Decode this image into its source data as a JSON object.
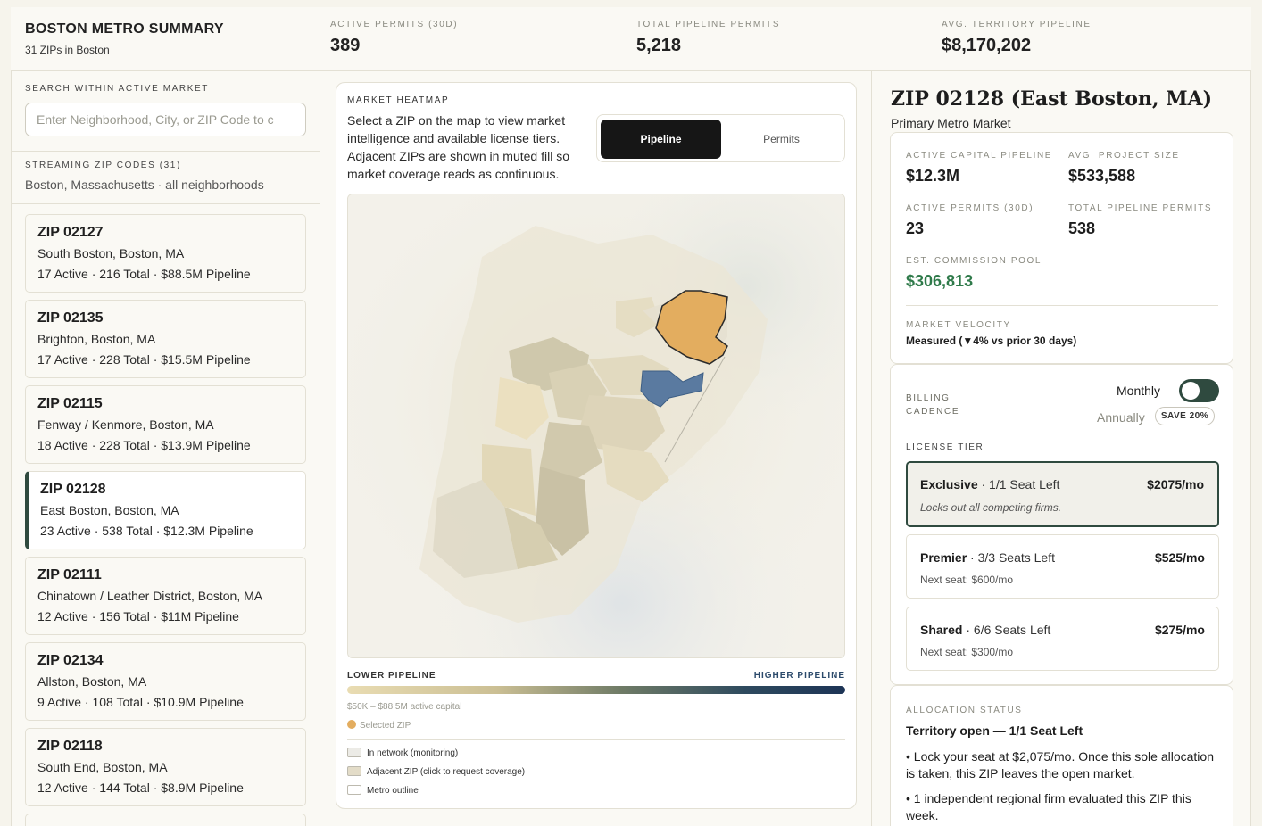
{
  "header": {
    "title": "BOSTON METRO SUMMARY",
    "subtitle": "31 ZIPs in Boston",
    "stats": [
      {
        "label": "ACTIVE PERMITS (30D)",
        "value": "389"
      },
      {
        "label": "TOTAL PIPELINE PERMITS",
        "value": "5,218"
      },
      {
        "label": "AVG. TERRITORY PIPELINE",
        "value": "$8,170,202"
      }
    ]
  },
  "sidebar": {
    "search_label": "SEARCH WITHIN ACTIVE MARKET",
    "search_placeholder": "Enter Neighborhood, City, or ZIP Code to c",
    "streaming_label": "STREAMING ZIP CODES (31)",
    "streaming_sub": "Boston, Massachusetts · all neighborhoods",
    "zips": [
      {
        "title": "ZIP 02127",
        "location": "South Boston, Boston, MA",
        "stats": "17 Active · 216 Total · $88.5M Pipeline"
      },
      {
        "title": "ZIP 02135",
        "location": "Brighton, Boston, MA",
        "stats": "17 Active · 228 Total · $15.5M Pipeline"
      },
      {
        "title": "ZIP 02115",
        "location": "Fenway / Kenmore, Boston, MA",
        "stats": "18 Active · 228 Total · $13.9M Pipeline"
      },
      {
        "title": "ZIP 02128",
        "location": "East Boston, Boston, MA",
        "stats": "23 Active · 538 Total · $12.3M Pipeline"
      },
      {
        "title": "ZIP 02111",
        "location": "Chinatown / Leather District, Boston, MA",
        "stats": "12 Active · 156 Total · $11M Pipeline"
      },
      {
        "title": "ZIP 02134",
        "location": "Allston, Boston, MA",
        "stats": "9 Active · 108 Total · $10.9M Pipeline"
      },
      {
        "title": "ZIP 02118",
        "location": "South End, Boston, MA",
        "stats": "12 Active · 144 Total · $8.9M Pipeline"
      }
    ]
  },
  "heatmap": {
    "label": "MARKET HEATMAP",
    "description": "Select a ZIP on the map to view market intelligence and available license tiers. Adjacent ZIPs are shown in muted fill so market coverage reads as continuous.",
    "toggle_active": "Pipeline",
    "toggle_inactive": "Permits",
    "legend_low": "LOWER PIPELINE",
    "legend_high": "HIGHER PIPELINE",
    "range": "$50K – $88.5M active capital",
    "selected_zip": "Selected ZIP",
    "keys": [
      "In network (monitoring)",
      "Adjacent ZIP (click to request coverage)",
      "Metro outline"
    ],
    "colors": {
      "selected": "#e3ad5f",
      "high": "#5a7aa0",
      "low": "#ebe2c6"
    }
  },
  "detail": {
    "title": "ZIP 02128 (East Boston, MA)",
    "subtitle": "Primary Metro Market",
    "metrics": [
      {
        "label": "ACTIVE CAPITAL PIPELINE",
        "value": "$12.3M"
      },
      {
        "label": "AVG. PROJECT SIZE",
        "value": "$533,588"
      },
      {
        "label": "ACTIVE PERMITS (30D)",
        "value": "23"
      },
      {
        "label": "TOTAL PIPELINE PERMITS",
        "value": "538"
      }
    ],
    "commission_label": "EST. COMMISSION POOL",
    "commission_value": "$306,813",
    "velocity_label": "MARKET VELOCITY",
    "velocity_value": "Measured (▼4% vs prior 30 days)"
  },
  "billing": {
    "label_line1": "BILLING",
    "label_line2": "CADENCE",
    "monthly": "Monthly",
    "annually": "Annually",
    "save_badge": "SAVE 20%",
    "license_label": "LICENSE TIER",
    "tiers": [
      {
        "name": "Exclusive",
        "seats": " · 1/1 Seat Left",
        "price": "$2075/mo",
        "note": "Locks out all competing firms."
      },
      {
        "name": "Premier",
        "seats": " · 3/3 Seats Left",
        "price": "$525/mo",
        "note": "Next seat: $600/mo"
      },
      {
        "name": "Shared",
        "seats": " · 6/6 Seats Left",
        "price": "$275/mo",
        "note": "Next seat: $300/mo"
      }
    ]
  },
  "allocation": {
    "label": "ALLOCATION STATUS",
    "headline": "Territory open — 1/1 Seat Left",
    "bullets": [
      "• Lock your seat at $2,075/mo. Once this sole allocation is taken, this ZIP leaves the open market.",
      "• 1 independent regional firm evaluated this ZIP this week."
    ]
  }
}
